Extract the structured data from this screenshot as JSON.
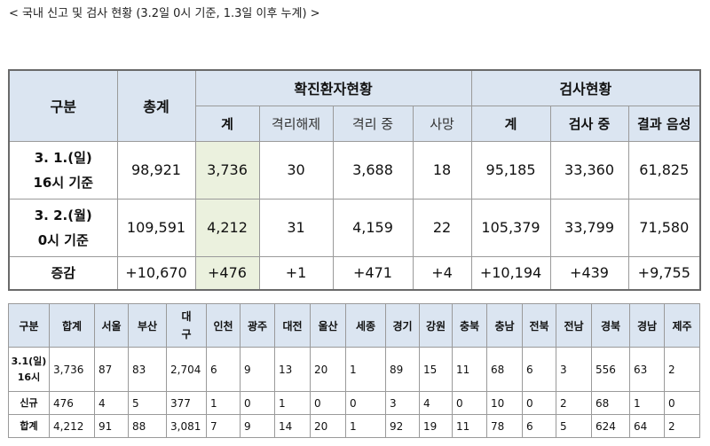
{
  "caption": "< 국내 신고 및 검사 현황 (3.2일 0시 기준, 1.3일 이후 누계) >",
  "table1": {
    "headers": {
      "category": "구분",
      "total": "총계",
      "confirmed_group": "확진환자현황",
      "test_group": "검사현황",
      "confirmed_sub": [
        "계",
        "격리해제",
        "격리 중",
        "사망"
      ],
      "test_sub": [
        "계",
        "검사 중",
        "결과 음성"
      ]
    },
    "rows": [
      {
        "label_line1": "3. 1.(일)",
        "label_line2": "16시 기준",
        "total": "98,921",
        "confirmed": "3,736",
        "released": "30",
        "isolated": "3,688",
        "deaths": "18",
        "tests_total": "95,185",
        "testing": "33,360",
        "negative": "61,825"
      },
      {
        "label_line1": "3. 2.(월)",
        "label_line2": "0시 기준",
        "total": "109,591",
        "confirmed": "4,212",
        "released": "31",
        "isolated": "4,159",
        "deaths": "22",
        "tests_total": "105,379",
        "testing": "33,799",
        "negative": "71,580"
      },
      {
        "label_line1": "증감",
        "label_line2": "",
        "total": "+10,670",
        "confirmed": "+476",
        "released": "+1",
        "isolated": "+471",
        "deaths": "+4",
        "tests_total": "+10,194",
        "testing": "+439",
        "negative": "+9,755"
      }
    ]
  },
  "table2": {
    "headers": [
      "구분",
      "합계",
      "서울",
      "부산",
      "대구",
      "인천",
      "광주",
      "대전",
      "울산",
      "세종",
      "경기",
      "강원",
      "충북",
      "충남",
      "전북",
      "전남",
      "경북",
      "경남",
      "제주"
    ],
    "daegu_line1": "대",
    "daegu_line2": "구",
    "rows": [
      {
        "label_line1": "3.1(일)",
        "label_line2": "16시",
        "values": [
          "3,736",
          "87",
          "83",
          "2,704",
          "6",
          "9",
          "13",
          "20",
          "1",
          "89",
          "15",
          "11",
          "68",
          "6",
          "3",
          "556",
          "63",
          "2"
        ]
      },
      {
        "label_line1": "신규",
        "label_line2": "",
        "values": [
          "476",
          "4",
          "5",
          "377",
          "1",
          "0",
          "1",
          "0",
          "0",
          "3",
          "4",
          "0",
          "10",
          "0",
          "2",
          "68",
          "1",
          "0"
        ]
      },
      {
        "label_line1": "합계",
        "label_line2": "",
        "values": [
          "4,212",
          "91",
          "88",
          "3,081",
          "7",
          "9",
          "14",
          "20",
          "1",
          "92",
          "19",
          "11",
          "78",
          "6",
          "5",
          "624",
          "64",
          "2"
        ]
      }
    ]
  }
}
